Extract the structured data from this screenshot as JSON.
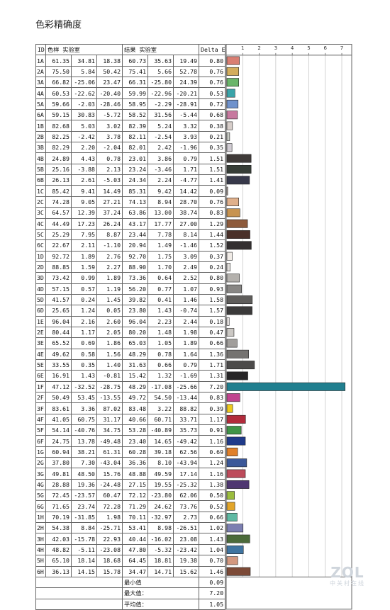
{
  "title": "色彩精确度",
  "table": {
    "headers": [
      "ID",
      "色样 实验室",
      "结果 实验室",
      "Delta E"
    ],
    "summary": [
      {
        "label": "最小值",
        "value": "0.09"
      },
      {
        "label": "最大值：",
        "value": "7.20"
      },
      {
        "label": "平均值：",
        "value": "1.05"
      }
    ]
  },
  "chart_data": {
    "type": "bar",
    "orientation": "horizontal",
    "x_ticks": [
      "1",
      "2",
      "3",
      "4",
      "5",
      "6",
      "7"
    ],
    "xlim": [
      0,
      7.6
    ],
    "grid": true,
    "rows": [
      {
        "id": "1A",
        "ref": [
          "61.35",
          "34.81",
          "18.38"
        ],
        "res": [
          "60.73",
          "35.63",
          "19.49"
        ],
        "de": 0.8,
        "color": "#d97e72"
      },
      {
        "id": "2A",
        "ref": [
          "75.50",
          "5.84",
          "50.42"
        ],
        "res": [
          "75.41",
          "5.66",
          "52.78"
        ],
        "de": 0.76,
        "color": "#d3ad5c"
      },
      {
        "id": "3A",
        "ref": [
          "66.82",
          "-25.06",
          "23.47"
        ],
        "res": [
          "66.31",
          "-25.80",
          "24.39"
        ],
        "de": 0.76,
        "color": "#6ab56a"
      },
      {
        "id": "4A",
        "ref": [
          "60.53",
          "-22.62",
          "-20.40"
        ],
        "res": [
          "59.99",
          "-22.96",
          "-20.21"
        ],
        "de": 0.53,
        "color": "#3aa4a9"
      },
      {
        "id": "5A",
        "ref": [
          "59.66",
          "-2.03",
          "-28.46"
        ],
        "res": [
          "58.95",
          "-2.29",
          "-28.91"
        ],
        "de": 0.72,
        "color": "#6f92cc"
      },
      {
        "id": "6A",
        "ref": [
          "59.15",
          "30.83",
          "-5.72"
        ],
        "res": [
          "58.52",
          "31.56",
          "-5.44"
        ],
        "de": 0.68,
        "color": "#c7799f"
      },
      {
        "id": "1B",
        "ref": [
          "82.68",
          "5.03",
          "3.02"
        ],
        "res": [
          "82.39",
          "5.24",
          "3.32"
        ],
        "de": 0.38,
        "color": "#d6cdc9"
      },
      {
        "id": "2B",
        "ref": [
          "82.25",
          "-2.42",
          "3.78"
        ],
        "res": [
          "82.11",
          "-2.54",
          "3.93"
        ],
        "de": 0.21,
        "color": "#c9ccc5"
      },
      {
        "id": "3B",
        "ref": [
          "82.29",
          "2.20",
          "-2.04"
        ],
        "res": [
          "82.01",
          "2.42",
          "-1.96"
        ],
        "de": 0.35,
        "color": "#d0cbd2"
      },
      {
        "id": "4B",
        "ref": [
          "24.89",
          "4.43",
          "0.78"
        ],
        "res": [
          "23.01",
          "3.86",
          "0.79"
        ],
        "de": 1.51,
        "color": "#3f3a38"
      },
      {
        "id": "5B",
        "ref": [
          "25.16",
          "-3.88",
          "2.13"
        ],
        "res": [
          "23.24",
          "-3.46",
          "1.71"
        ],
        "de": 1.51,
        "color": "#363d36"
      },
      {
        "id": "6B",
        "ref": [
          "26.13",
          "2.61",
          "-5.03"
        ],
        "res": [
          "24.34",
          "2.24",
          "-4.77"
        ],
        "de": 1.41,
        "color": "#37394a"
      },
      {
        "id": "1C",
        "ref": [
          "85.42",
          "9.41",
          "14.49"
        ],
        "res": [
          "85.31",
          "9.42",
          "14.42"
        ],
        "de": 0.09,
        "color": "#eed3c2"
      },
      {
        "id": "2C",
        "ref": [
          "74.28",
          "9.05",
          "27.21"
        ],
        "res": [
          "74.13",
          "8.94",
          "28.70"
        ],
        "de": 0.76,
        "color": "#e0b08b"
      },
      {
        "id": "3C",
        "ref": [
          "64.57",
          "12.39",
          "37.24"
        ],
        "res": [
          "63.86",
          "13.00",
          "38.74"
        ],
        "de": 0.83,
        "color": "#c79350"
      },
      {
        "id": "4C",
        "ref": [
          "44.49",
          "17.23",
          "26.24"
        ],
        "res": [
          "43.17",
          "17.77",
          "27.00"
        ],
        "de": 1.29,
        "color": "#8e5b3c"
      },
      {
        "id": "5C",
        "ref": [
          "25.29",
          "7.95",
          "8.87"
        ],
        "res": [
          "23.44",
          "7.78",
          "8.14"
        ],
        "de": 1.44,
        "color": "#4a3029"
      },
      {
        "id": "6C",
        "ref": [
          "22.67",
          "2.11",
          "-1.10"
        ],
        "res": [
          "20.94",
          "1.49",
          "-1.46"
        ],
        "de": 1.52,
        "color": "#332f30"
      },
      {
        "id": "1D",
        "ref": [
          "92.72",
          "1.89",
          "2.76"
        ],
        "res": [
          "92.70",
          "1.75",
          "3.09"
        ],
        "de": 0.37,
        "color": "#f0ebe6"
      },
      {
        "id": "2D",
        "ref": [
          "88.85",
          "1.59",
          "2.27"
        ],
        "res": [
          "88.90",
          "1.70",
          "2.49"
        ],
        "de": 0.24,
        "color": "#e0ddda"
      },
      {
        "id": "3D",
        "ref": [
          "73.42",
          "0.99",
          "1.89"
        ],
        "res": [
          "73.36",
          "0.64",
          "2.52"
        ],
        "de": 0.8,
        "color": "#b4b1ad"
      },
      {
        "id": "4D",
        "ref": [
          "57.15",
          "0.57",
          "1.19"
        ],
        "res": [
          "56.20",
          "0.77",
          "1.07"
        ],
        "de": 0.93,
        "color": "#888684"
      },
      {
        "id": "5D",
        "ref": [
          "41.57",
          "0.24",
          "1.45"
        ],
        "res": [
          "39.82",
          "0.41",
          "1.46"
        ],
        "de": 1.58,
        "color": "#5f5d5b"
      },
      {
        "id": "6D",
        "ref": [
          "25.65",
          "1.24",
          "0.05"
        ],
        "res": [
          "23.80",
          "1.43",
          "-0.74"
        ],
        "de": 1.57,
        "color": "#3b3a3a"
      },
      {
        "id": "1E",
        "ref": [
          "96.04",
          "2.16",
          "2.60"
        ],
        "res": [
          "96.04",
          "2.23",
          "2.44"
        ],
        "de": 0.18,
        "color": "#f6f1ee"
      },
      {
        "id": "2E",
        "ref": [
          "80.44",
          "1.17",
          "2.05"
        ],
        "res": [
          "80.20",
          "1.48",
          "1.98"
        ],
        "de": 0.47,
        "color": "#cbc8c4"
      },
      {
        "id": "3E",
        "ref": [
          "65.52",
          "0.69",
          "1.86"
        ],
        "res": [
          "65.03",
          "1.05",
          "1.89"
        ],
        "de": 0.66,
        "color": "#a19e9b"
      },
      {
        "id": "4E",
        "ref": [
          "49.62",
          "0.58",
          "1.56"
        ],
        "res": [
          "48.29",
          "0.78",
          "1.64"
        ],
        "de": 1.36,
        "color": "#757371"
      },
      {
        "id": "5E",
        "ref": [
          "33.55",
          "0.35",
          "1.40"
        ],
        "res": [
          "31.63",
          "0.66",
          "0.79"
        ],
        "de": 1.71,
        "color": "#4c4b4a"
      },
      {
        "id": "6E",
        "ref": [
          "16.91",
          "1.43",
          "-0.81"
        ],
        "res": [
          "15.42",
          "1.32",
          "-1.69"
        ],
        "de": 1.31,
        "color": "#262526"
      },
      {
        "id": "1F",
        "ref": [
          "47.12",
          "-32.52",
          "-28.75"
        ],
        "res": [
          "48.29",
          "-17.08",
          "-25.66"
        ],
        "de": 7.2,
        "color": "#207f8f"
      },
      {
        "id": "2F",
        "ref": [
          "50.49",
          "53.45",
          "-13.55"
        ],
        "res": [
          "49.72",
          "54.50",
          "-13.44"
        ],
        "de": 0.83,
        "color": "#c1448f"
      },
      {
        "id": "3F",
        "ref": [
          "83.61",
          "3.36",
          "87.02"
        ],
        "res": [
          "83.48",
          "3.22",
          "88.82"
        ],
        "de": 0.39,
        "color": "#eec91c"
      },
      {
        "id": "4F",
        "ref": [
          "41.05",
          "60.75",
          "31.17"
        ],
        "res": [
          "40.66",
          "60.71",
          "33.71"
        ],
        "de": 1.17,
        "color": "#b22b3b"
      },
      {
        "id": "5F",
        "ref": [
          "54.14",
          "-40.76",
          "34.75"
        ],
        "res": [
          "53.28",
          "-40.89",
          "35.73"
        ],
        "de": 0.91,
        "color": "#3f9447"
      },
      {
        "id": "6F",
        "ref": [
          "24.75",
          "13.78",
          "-49.48"
        ],
        "res": [
          "23.40",
          "14.65",
          "-49.42"
        ],
        "de": 1.16,
        "color": "#1f3a8a"
      },
      {
        "id": "1G",
        "ref": [
          "60.94",
          "38.21",
          "61.31"
        ],
        "res": [
          "60.28",
          "39.18",
          "62.56"
        ],
        "de": 0.69,
        "color": "#e0802a"
      },
      {
        "id": "2G",
        "ref": [
          "37.80",
          "7.30",
          "-43.04"
        ],
        "res": [
          "36.36",
          "8.10",
          "-43.94"
        ],
        "de": 1.24,
        "color": "#3b5899"
      },
      {
        "id": "3G",
        "ref": [
          "49.81",
          "48.50",
          "15.76"
        ],
        "res": [
          "48.88",
          "49.59",
          "17.14"
        ],
        "de": 1.16,
        "color": "#bd4b5b"
      },
      {
        "id": "4G",
        "ref": [
          "28.88",
          "19.36",
          "-24.48"
        ],
        "res": [
          "27.15",
          "19.55",
          "-25.32"
        ],
        "de": 1.38,
        "color": "#4f3771"
      },
      {
        "id": "5G",
        "ref": [
          "72.45",
          "-23.57",
          "60.47"
        ],
        "res": [
          "72.12",
          "-23.80",
          "62.06"
        ],
        "de": 0.5,
        "color": "#9bbd3e"
      },
      {
        "id": "6G",
        "ref": [
          "71.65",
          "23.74",
          "72.28"
        ],
        "res": [
          "71.29",
          "24.62",
          "73.76"
        ],
        "de": 0.52,
        "color": "#e2a52a"
      },
      {
        "id": "1H",
        "ref": [
          "70.19",
          "-31.85",
          "1.98"
        ],
        "res": [
          "70.11",
          "-32.97",
          "2.73"
        ],
        "de": 0.66,
        "color": "#5fb9a3"
      },
      {
        "id": "2H",
        "ref": [
          "54.38",
          "8.84",
          "-25.71"
        ],
        "res": [
          "53.41",
          "8.98",
          "-26.51"
        ],
        "de": 1.02,
        "color": "#7c7fb1"
      },
      {
        "id": "3H",
        "ref": [
          "42.03",
          "-15.78",
          "22.93"
        ],
        "res": [
          "40.44",
          "-16.02",
          "23.08"
        ],
        "de": 1.43,
        "color": "#4b6a3a"
      },
      {
        "id": "4H",
        "ref": [
          "48.82",
          "-5.11",
          "-23.08"
        ],
        "res": [
          "47.80",
          "-5.32",
          "-23.42"
        ],
        "de": 1.04,
        "color": "#3f74a0"
      },
      {
        "id": "5H",
        "ref": [
          "65.10",
          "18.14",
          "18.68"
        ],
        "res": [
          "64.45",
          "18.81",
          "19.38"
        ],
        "de": 0.7,
        "color": "#d3987f"
      },
      {
        "id": "6H",
        "ref": [
          "36.13",
          "14.15",
          "15.78"
        ],
        "res": [
          "34.47",
          "14.71",
          "15.62"
        ],
        "de": 1.46,
        "color": "#7c4a37"
      }
    ]
  },
  "watermark": {
    "logo": "ZOL",
    "sub": "中关村在线"
  }
}
